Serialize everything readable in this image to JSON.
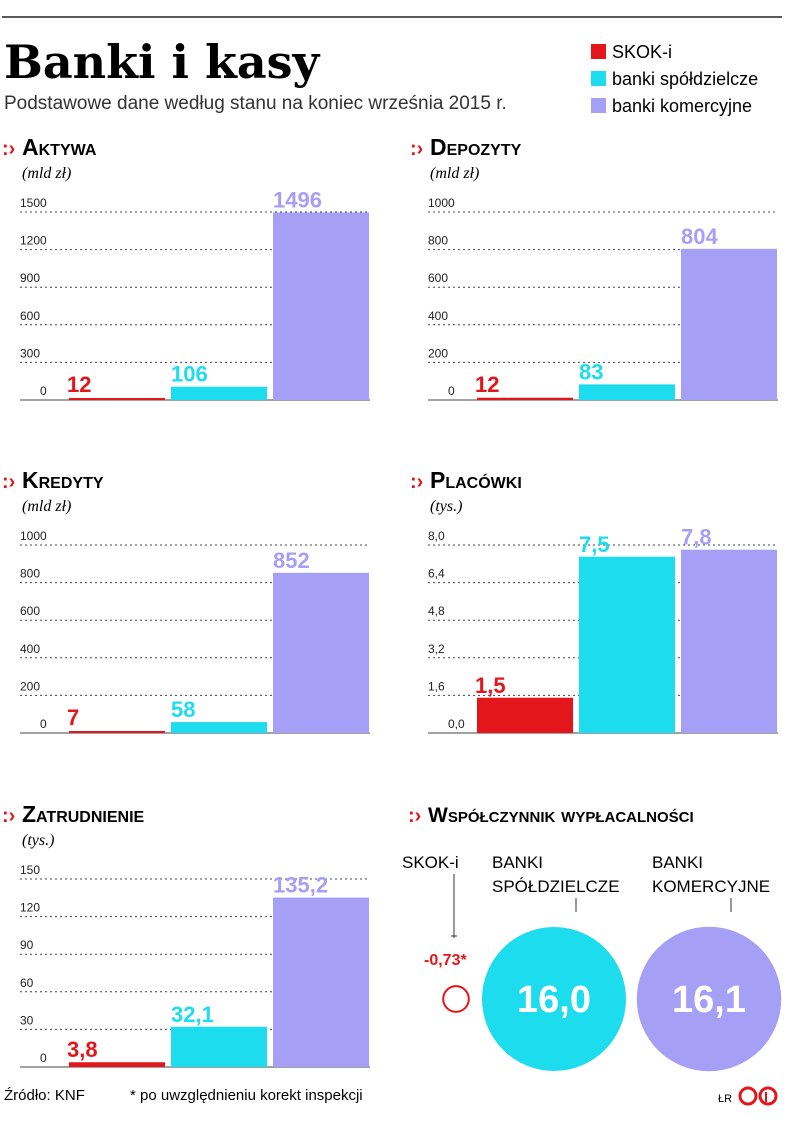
{
  "title": "Banki i kasy",
  "subtitle": "Podstawowe dane według stanu na koniec września 2015 r.",
  "legend": [
    {
      "label": "SKOK-i",
      "color": "#e3171b"
    },
    {
      "label": "banki spółdzielcze",
      "color": "#1ddcee"
    },
    {
      "label": "banki komercyjne",
      "color": "#a59ff5"
    }
  ],
  "chart_data": [
    {
      "type": "bar",
      "title": "Aktywa",
      "unit": "(mld zł)",
      "categories": [
        "SKOK-i",
        "banki spółdzielcze",
        "banki komercyjne"
      ],
      "values": [
        12,
        106,
        1496
      ],
      "value_labels": [
        "12",
        "106",
        "1496"
      ],
      "ylim": [
        0,
        1500
      ],
      "yticks": [
        "0",
        "300",
        "600",
        "900",
        "1200",
        "1500"
      ]
    },
    {
      "type": "bar",
      "title": "Depozyty",
      "unit": "(mld zł)",
      "categories": [
        "SKOK-i",
        "banki spółdzielcze",
        "banki komercyjne"
      ],
      "values": [
        12,
        83,
        804
      ],
      "value_labels": [
        "12",
        "83",
        "804"
      ],
      "ylim": [
        0,
        1000
      ],
      "yticks": [
        "0",
        "200",
        "400",
        "600",
        "800",
        "1000"
      ]
    },
    {
      "type": "bar",
      "title": "Kredyty",
      "unit": "(mld zł)",
      "categories": [
        "SKOK-i",
        "banki spółdzielcze",
        "banki komercyjne"
      ],
      "values": [
        7,
        58,
        852
      ],
      "value_labels": [
        "7",
        "58",
        "852"
      ],
      "ylim": [
        0,
        1000
      ],
      "yticks": [
        "0",
        "200",
        "400",
        "600",
        "800",
        "1000"
      ]
    },
    {
      "type": "bar",
      "title": "Placówki",
      "unit": "(tys.)",
      "categories": [
        "SKOK-i",
        "banki spółdzielcze",
        "banki komercyjne"
      ],
      "values": [
        1.5,
        7.5,
        7.8
      ],
      "value_labels": [
        "1,5",
        "7,5",
        "7,8"
      ],
      "ylim": [
        0,
        8
      ],
      "yticks": [
        "0,0",
        "1,6",
        "3,2",
        "4,8",
        "6,4",
        "8,0"
      ]
    },
    {
      "type": "bar",
      "title": "Zatrudnienie",
      "unit": "(tys.)",
      "categories": [
        "SKOK-i",
        "banki spółdzielcze",
        "banki komercyjne"
      ],
      "values": [
        3.8,
        32.1,
        135.2
      ],
      "value_labels": [
        "3,8",
        "32,1",
        "135,2"
      ],
      "ylim": [
        0,
        150
      ],
      "yticks": [
        "0",
        "30",
        "60",
        "90",
        "120",
        "150"
      ]
    },
    {
      "type": "bubble",
      "title": "Współczynnik wypłacalności",
      "categories": [
        "SKOK-i",
        "BANKI SPÓŁDZIELCZE",
        "BANKI KOMERCYJNE"
      ],
      "values": [
        -0.73,
        16.0,
        16.1
      ],
      "value_labels": [
        "-0,73*",
        "16,0",
        "16,1"
      ]
    }
  ],
  "footer": {
    "source": "Źródło: KNF",
    "note": "* po uwzględnieniu korekt inspekcji",
    "initials": "ŁR"
  }
}
